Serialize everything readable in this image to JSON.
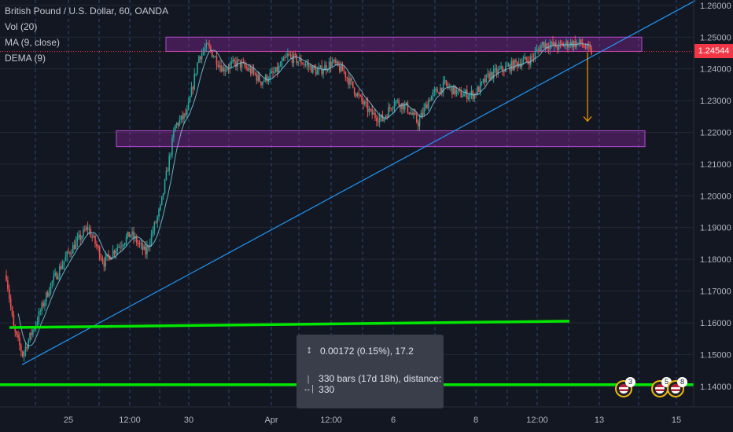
{
  "legend": {
    "symbol": "British Pound / U.S. Dollar, 60, OANDA",
    "vol": "Vol (20)",
    "ma": "MA (9, close)",
    "dema": "DEMA (9)"
  },
  "current_price": "1.24544",
  "measure_tool": {
    "price_line": "0.00172 (0.15%), 17.2",
    "bars_line": "330 bars (17d 18h), distance: 330",
    "icon_price": "vertical-measure-icon",
    "icon_bars": "horizontal-measure-icon"
  },
  "events": [
    {
      "count": "3",
      "icon": "us-flag-icon"
    },
    {
      "count": "5",
      "icon": "us-flag-icon"
    },
    {
      "count": "8",
      "icon": "us-flag-icon"
    }
  ],
  "colors": {
    "background": "#131722",
    "up": "#26a69a",
    "down": "#ef5350",
    "zone": "#9c27b0",
    "trendline": "#2196f3",
    "support": "#00e600",
    "arrow": "#ff9800",
    "ma": "#7ec8e3",
    "badge": "#f23645"
  },
  "chart_data": {
    "type": "candlestick",
    "y_ticks": [
      "1.26000",
      "1.25000",
      "1.24000",
      "1.23000",
      "1.22000",
      "1.21000",
      "1.20000",
      "1.19000",
      "1.18000",
      "1.17000",
      "1.16000",
      "1.15000",
      "1.14000"
    ],
    "x_ticks": [
      "25",
      "12:00",
      "30",
      "Apr",
      "12:00",
      "6",
      "8",
      "12:00",
      "13",
      "15"
    ],
    "ylim": [
      1.1345,
      1.2612
    ],
    "grid": true,
    "anchors": [
      [
        0,
        1.175
      ],
      [
        5,
        1.158
      ],
      [
        11,
        1.15
      ],
      [
        20,
        1.16
      ],
      [
        30,
        1.172
      ],
      [
        42,
        1.182
      ],
      [
        55,
        1.19
      ],
      [
        66,
        1.179
      ],
      [
        73,
        1.183
      ],
      [
        84,
        1.188
      ],
      [
        94,
        1.182
      ],
      [
        104,
        1.196
      ],
      [
        114,
        1.222
      ],
      [
        122,
        1.226
      ],
      [
        130,
        1.244
      ],
      [
        136,
        1.247
      ],
      [
        146,
        1.24
      ],
      [
        156,
        1.242
      ],
      [
        166,
        1.239
      ],
      [
        172,
        1.236
      ],
      [
        182,
        1.239
      ],
      [
        190,
        1.244
      ],
      [
        200,
        1.242
      ],
      [
        210,
        1.239
      ],
      [
        220,
        1.242
      ],
      [
        228,
        1.239
      ],
      [
        238,
        1.231
      ],
      [
        246,
        1.226
      ],
      [
        254,
        1.224
      ],
      [
        262,
        1.23
      ],
      [
        270,
        1.228
      ],
      [
        278,
        1.223
      ],
      [
        286,
        1.231
      ],
      [
        296,
        1.235
      ],
      [
        306,
        1.232
      ],
      [
        316,
        1.232
      ],
      [
        326,
        1.238
      ],
      [
        336,
        1.24
      ],
      [
        346,
        1.242
      ],
      [
        354,
        1.243
      ],
      [
        362,
        1.248
      ],
      [
        372,
        1.247
      ],
      [
        380,
        1.248
      ],
      [
        388,
        1.248
      ],
      [
        392,
        1.2462
      ],
      [
        394,
        1.2454
      ]
    ],
    "resistance_zone": [
      1.2455,
      1.25
    ],
    "support_zone": [
      1.2155,
      1.2205
    ],
    "trendline": [
      [
        1.1468
      ],
      [
        1.2615
      ]
    ],
    "support_lines": [
      [
        1.1585,
        1.1605
      ],
      [
        1.1405,
        1.1405
      ]
    ],
    "target_arrow": [
      1.2452,
      1.2235
    ],
    "current_price_value": 1.24544
  }
}
